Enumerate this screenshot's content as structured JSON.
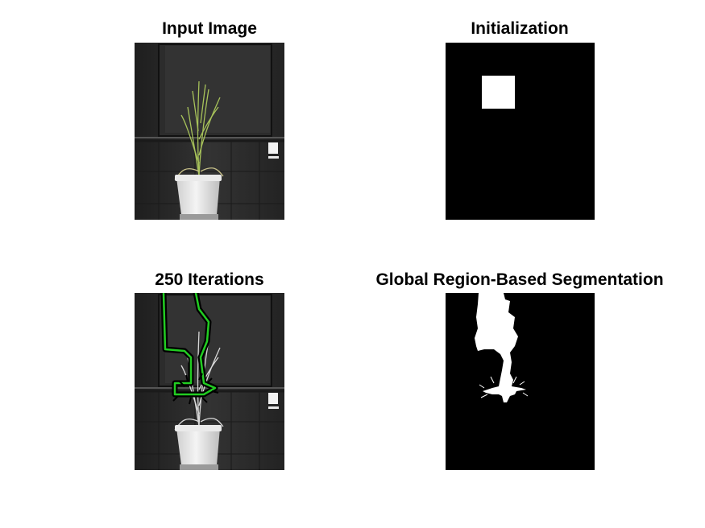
{
  "figure": {
    "panels": [
      {
        "title": "Input Image"
      },
      {
        "title": "Initialization"
      },
      {
        "title": "250 Iterations"
      },
      {
        "title": "Global Region-Based Segmentation"
      }
    ]
  },
  "colors": {
    "background": "#ffffff",
    "mask_background": "#000000",
    "mask_foreground": "#ffffff",
    "contour": "#22cc22",
    "wall_dark": "#2a2a2a",
    "plant_green": "#a7c25a"
  },
  "iterations": 250
}
